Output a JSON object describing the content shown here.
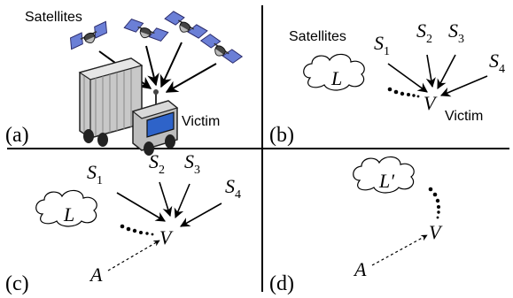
{
  "panels": {
    "a": {
      "label": "(a)",
      "satellites_label": "Satellites",
      "victim_label": "Victim"
    },
    "b": {
      "label": "(b)",
      "satellites_label": "Satellites",
      "victim_label": "Victim",
      "location": "L",
      "victim_symbol": "V",
      "sats": [
        {
          "base": "S",
          "sub": "1"
        },
        {
          "base": "S",
          "sub": "2"
        },
        {
          "base": "S",
          "sub": "3"
        },
        {
          "base": "S",
          "sub": "4"
        }
      ]
    },
    "c": {
      "label": "(c)",
      "location": "L",
      "victim_symbol": "V",
      "attacker": "A",
      "sats": [
        {
          "base": "S",
          "sub": "1"
        },
        {
          "base": "S",
          "sub": "2"
        },
        {
          "base": "S",
          "sub": "3"
        },
        {
          "base": "S",
          "sub": "4"
        }
      ]
    },
    "d": {
      "label": "(d)",
      "location": "L′",
      "victim_symbol": "V",
      "attacker": "A"
    }
  }
}
